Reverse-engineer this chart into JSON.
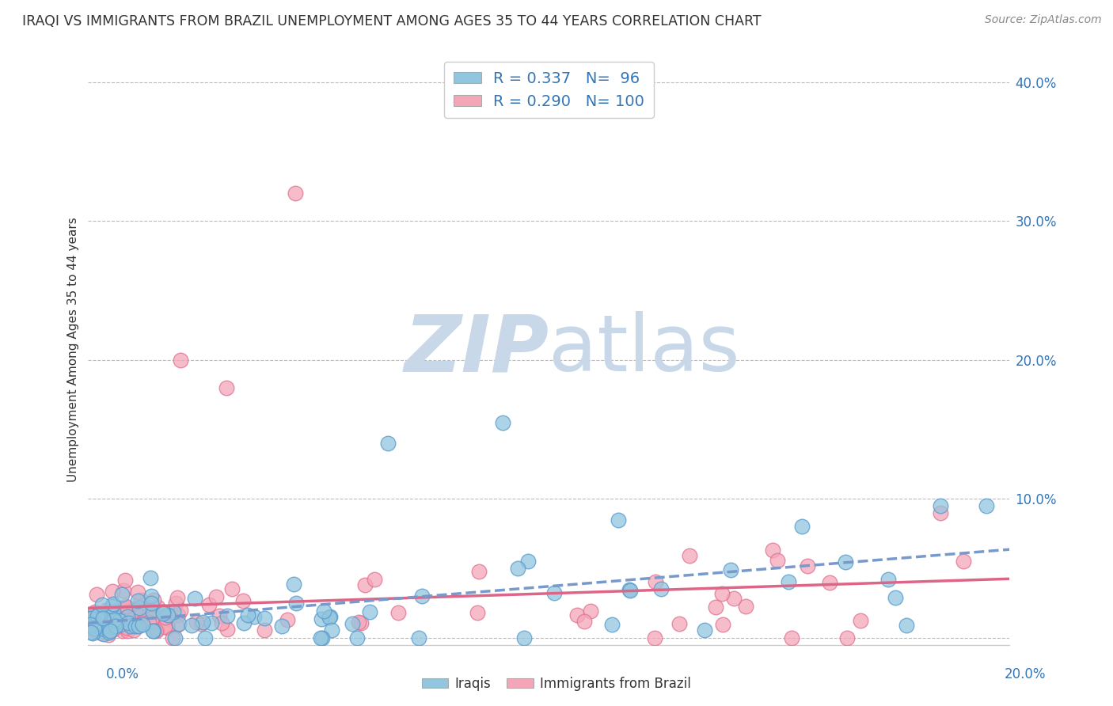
{
  "title": "IRAQI VS IMMIGRANTS FROM BRAZIL UNEMPLOYMENT AMONG AGES 35 TO 44 YEARS CORRELATION CHART",
  "source": "Source: ZipAtlas.com",
  "ylabel": "Unemployment Among Ages 35 to 44 years",
  "xmin": 0.0,
  "xmax": 0.2,
  "ymin": -0.005,
  "ymax": 0.42,
  "series1_label": "Iraqis",
  "series2_label": "Immigrants from Brazil",
  "series1_color": "#92C5DE",
  "series2_color": "#F4A6B8",
  "series1_edge": "#5599CC",
  "series2_edge": "#E07090",
  "series1_R": 0.337,
  "series1_N": 96,
  "series2_R": 0.29,
  "series2_N": 100,
  "legend_color": "#3375B5",
  "watermark_zip": "ZIP",
  "watermark_atlas": "atlas",
  "watermark_color": "#C8D8E8",
  "background_color": "#FFFFFF",
  "grid_color": "#BBBBBB",
  "title_color": "#333333",
  "axis_label_color": "#3375B5",
  "right_ytick_vals": [
    0.0,
    0.1,
    0.2,
    0.3,
    0.4
  ],
  "right_ytick_labels": [
    "",
    "10.0%",
    "20.0%",
    "30.0%",
    "40.0%"
  ],
  "trend1_color": "#7799CC",
  "trend2_color": "#DD6688"
}
